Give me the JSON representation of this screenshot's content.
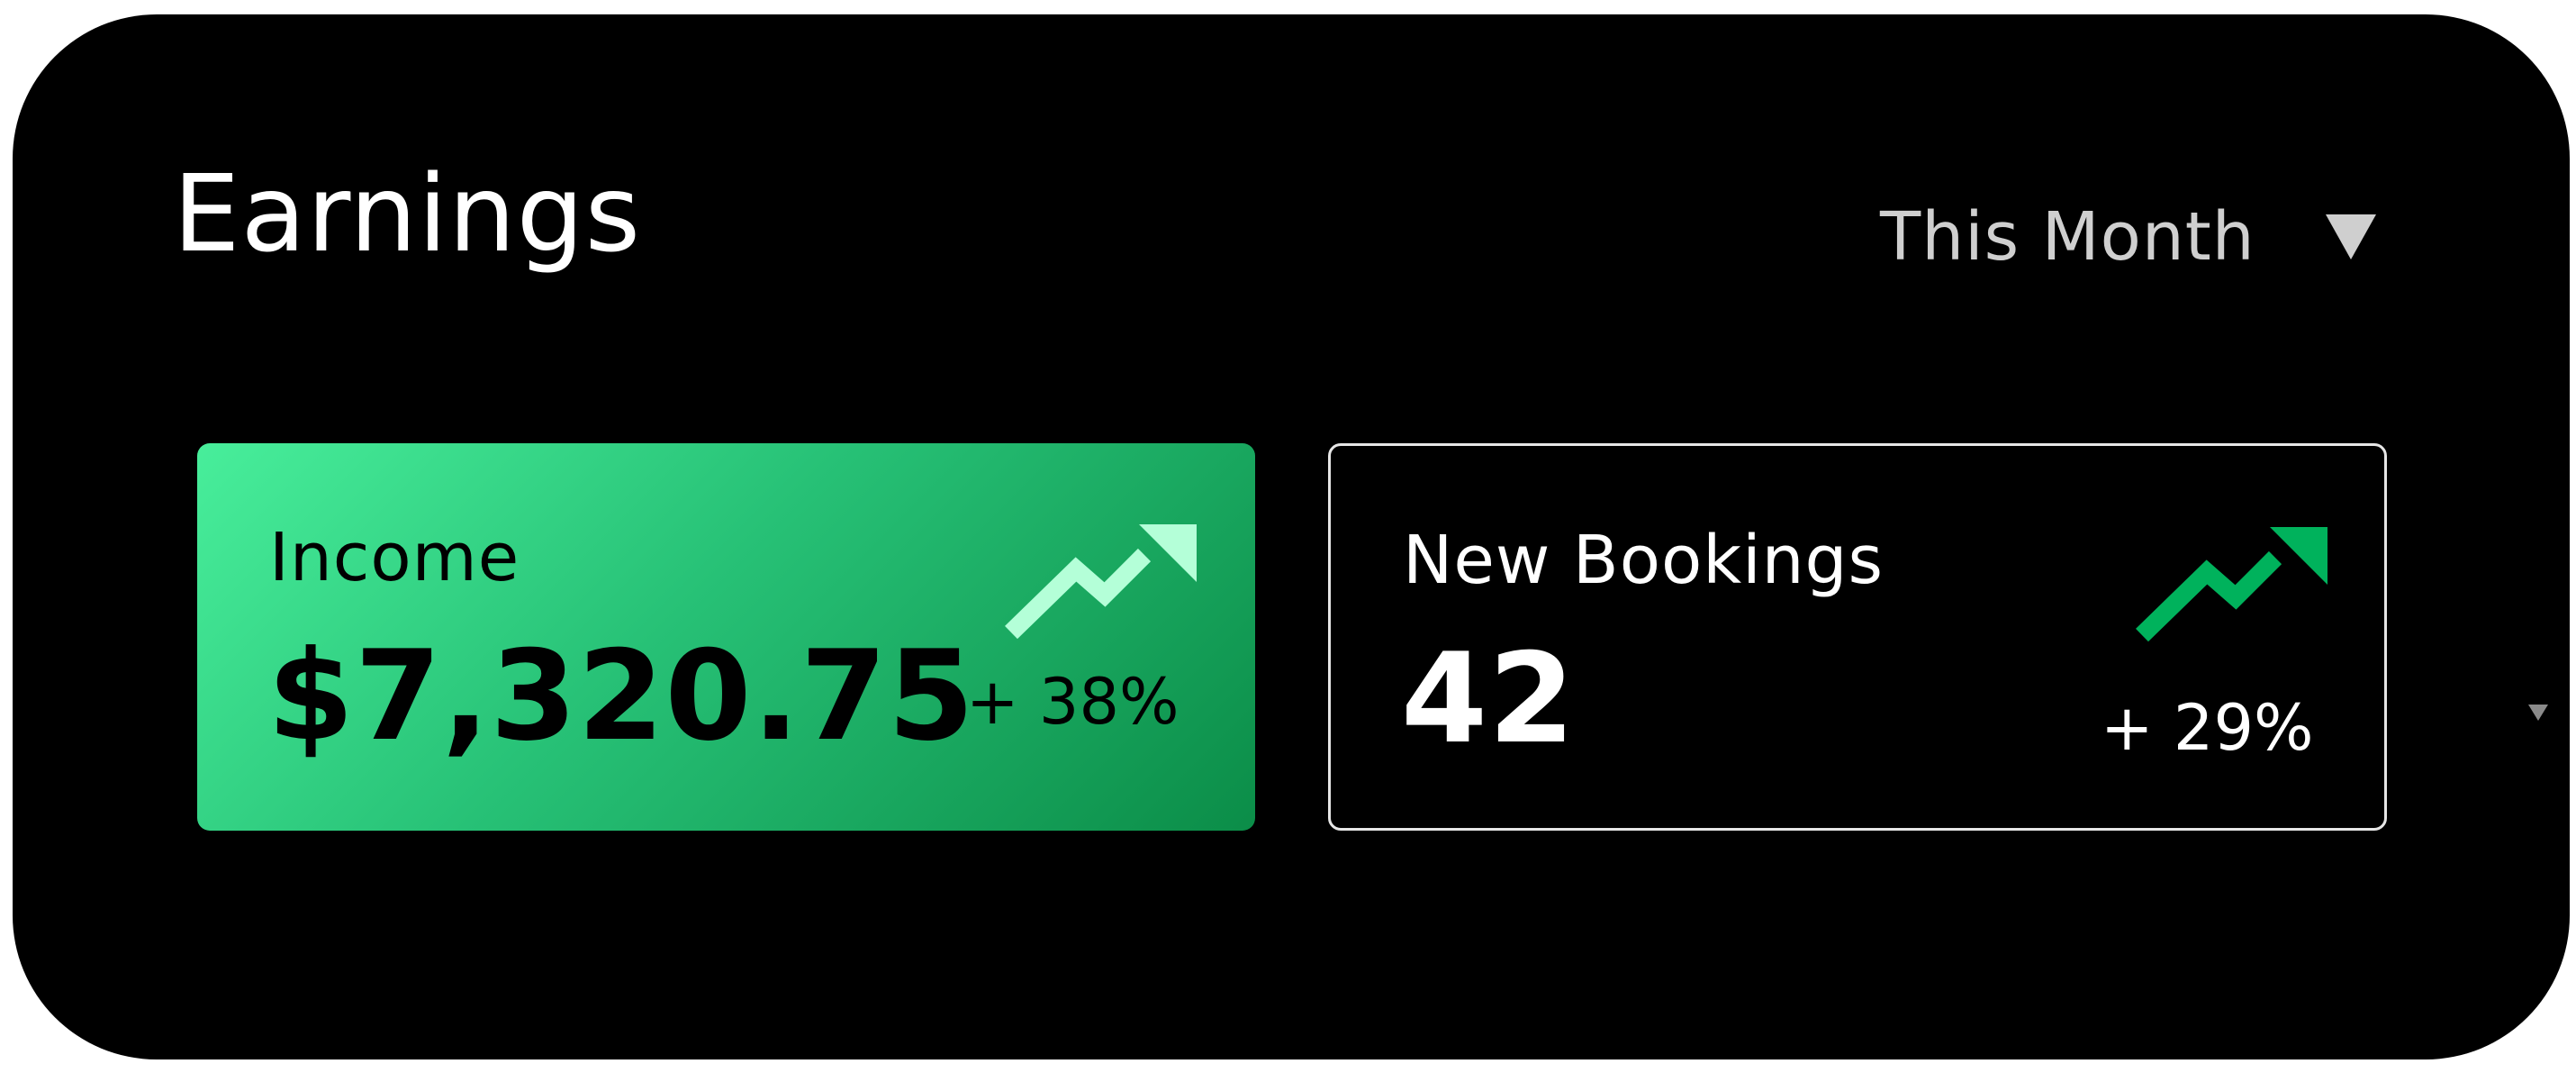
{
  "header": {
    "title": "Earnings",
    "period_selector": {
      "selected": "This Month",
      "caret_icon": "triangle-down-icon"
    }
  },
  "cards": [
    {
      "label": "Income",
      "value": "$7,320.75",
      "change": "+ 38%",
      "trend_icon": "trend-up-icon",
      "arrow_color": "#b4ffd8"
    },
    {
      "label": "New Bookings",
      "value": "42",
      "change": "+ 29%",
      "trend_icon": "trend-up-icon",
      "arrow_color": "#00b25c"
    }
  ],
  "side_control": {
    "icon": "triangle-down-icon"
  },
  "colors": {
    "background": "#000000",
    "income_gradient_start": "#48ee9b",
    "income_gradient_end": "#0b8d48",
    "title_text": "#ffffff",
    "muted_text": "#cfcfcf"
  }
}
